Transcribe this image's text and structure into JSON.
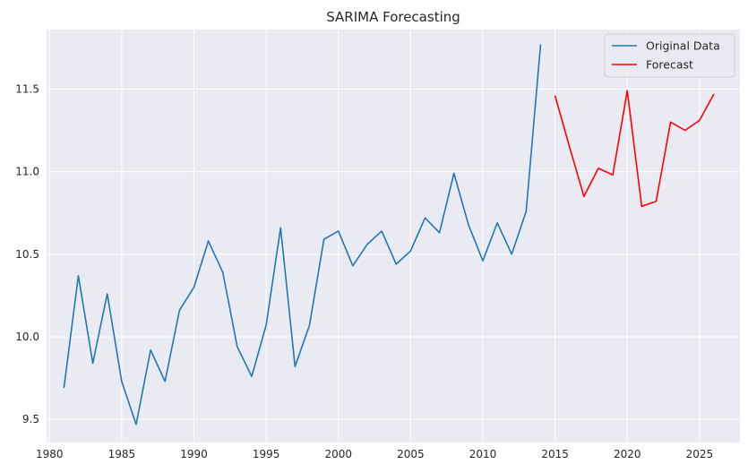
{
  "chart_data": {
    "type": "line",
    "title": "SARIMA Forecasting",
    "xlabel": "",
    "ylabel": "",
    "xlim": [
      1979.8,
      2027.8
    ],
    "ylim": [
      9.36,
      11.86
    ],
    "x_ticks": [
      1980,
      1985,
      1990,
      1995,
      2000,
      2005,
      2010,
      2015,
      2020,
      2025
    ],
    "y_ticks": [
      9.5,
      10.0,
      10.5,
      11.0,
      11.5
    ],
    "x_tick_labels": [
      "1980",
      "1985",
      "1990",
      "1995",
      "2000",
      "2005",
      "2010",
      "2015",
      "2020",
      "2025"
    ],
    "y_tick_labels": [
      "9.5",
      "10.0",
      "10.5",
      "11.0",
      "11.5"
    ],
    "grid": true,
    "legend_position": "top-right",
    "series": [
      {
        "name": "Original Data",
        "color": "#1f77b4",
        "x": [
          1981,
          1982,
          1983,
          1984,
          1985,
          1986,
          1987,
          1988,
          1989,
          1990,
          1991,
          1992,
          1993,
          1994,
          1995,
          1996,
          1997,
          1998,
          1999,
          2000,
          2001,
          2002,
          2003,
          2004,
          2005,
          2006,
          2007,
          2008,
          2009,
          2010,
          2011,
          2012,
          2013,
          2014
        ],
        "y": [
          9.69,
          10.37,
          9.84,
          10.26,
          9.73,
          9.47,
          9.92,
          9.73,
          10.16,
          10.3,
          10.58,
          10.39,
          9.94,
          9.76,
          10.07,
          10.66,
          9.82,
          10.07,
          10.59,
          10.64,
          10.43,
          10.56,
          10.64,
          10.44,
          10.52,
          10.72,
          10.63,
          10.99,
          10.68,
          10.46,
          10.69,
          10.5,
          10.76,
          11.77
        ]
      },
      {
        "name": "Forecast",
        "color": "#ff0000",
        "x": [
          2015,
          2016,
          2017,
          2018,
          2019,
          2020,
          2021,
          2022,
          2023,
          2024,
          2025,
          2026
        ],
        "y": [
          11.46,
          11.15,
          10.85,
          11.02,
          10.98,
          11.49,
          10.79,
          10.82,
          11.3,
          11.25,
          11.31,
          11.47
        ]
      }
    ]
  }
}
